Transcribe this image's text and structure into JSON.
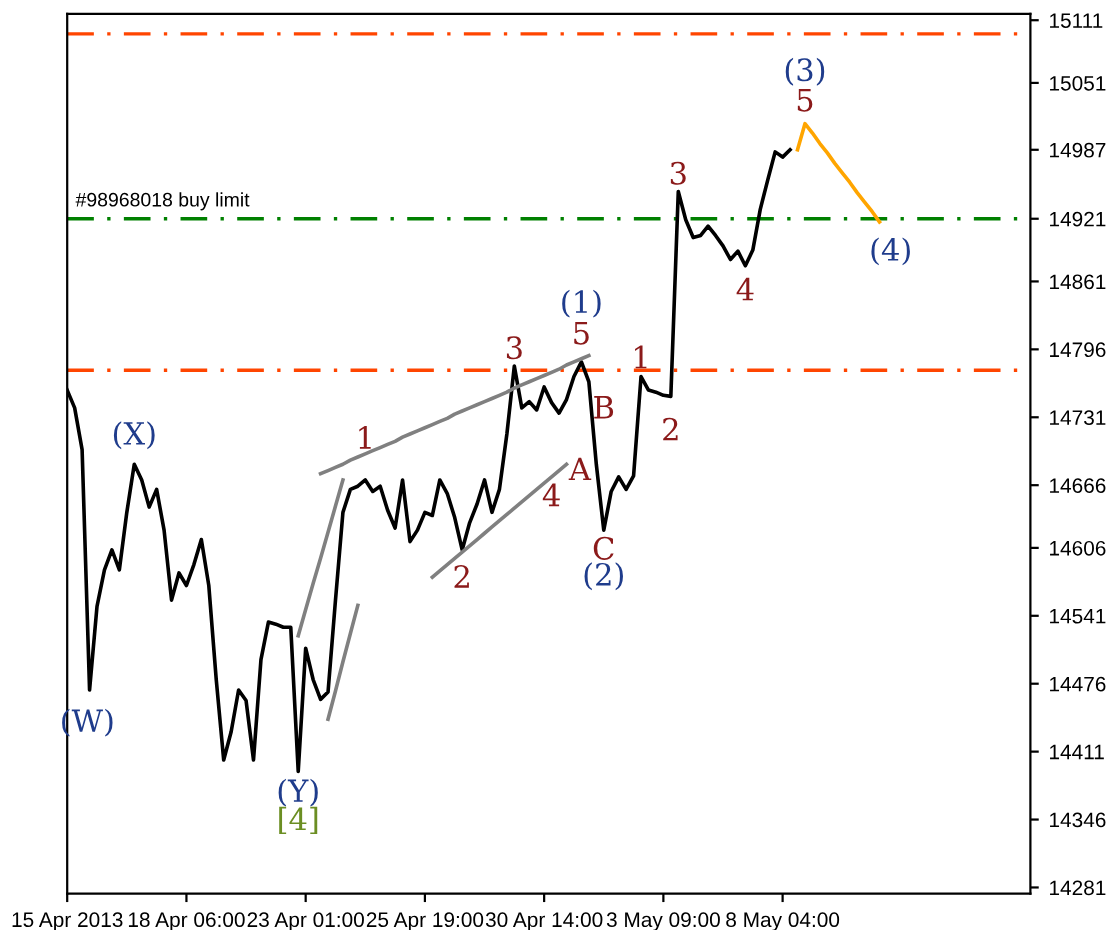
{
  "chart_data": {
    "type": "line",
    "categories": [
      "15 Apr 2013",
      null,
      null,
      null,
      null,
      null,
      null,
      null,
      null,
      null,
      null,
      null,
      null,
      null,
      null,
      null,
      "18 Apr 06:00",
      null,
      null,
      null,
      null,
      null,
      null,
      null,
      null,
      null,
      null,
      null,
      null,
      null,
      null,
      null,
      "23 Apr 01:00",
      null,
      null,
      null,
      null,
      null,
      null,
      null,
      null,
      null,
      null,
      null,
      null,
      null,
      null,
      null,
      "25 Apr 19:00",
      null,
      null,
      null,
      null,
      null,
      null,
      null,
      null,
      null,
      null,
      null,
      null,
      null,
      null,
      null,
      "30 Apr 14:00",
      null,
      null,
      null,
      null,
      null,
      null,
      null,
      null,
      null,
      null,
      null,
      null,
      null,
      null,
      null,
      "3 May 09:00",
      null,
      null,
      null,
      null,
      null,
      null,
      null,
      null,
      null,
      null,
      null,
      null,
      null,
      null,
      null,
      "8 May 04:00",
      null,
      null,
      null,
      null,
      null,
      null,
      null,
      null,
      null,
      null,
      null,
      null,
      null,
      null,
      null,
      null,
      null,
      null,
      null,
      null,
      null,
      null,
      null,
      null,
      null,
      null,
      null,
      null,
      null,
      null,
      null,
      null,
      null
    ],
    "ylim": [
      14275,
      15117
    ],
    "yticks": [
      15111,
      15051,
      14987,
      14921,
      14861,
      14796,
      14731,
      14666,
      14606,
      14541,
      14476,
      14411,
      14346,
      14281
    ],
    "series": [
      {
        "color": "#000000",
        "values": [
          14757,
          14740,
          14700,
          14470,
          14550,
          14585,
          14604,
          14585,
          14640,
          14686,
          14671,
          14645,
          14662,
          14623,
          14556,
          14582,
          14570,
          14590,
          14614,
          14570,
          14480,
          14403,
          14430,
          14470,
          14460,
          14403,
          14499,
          14535,
          14533,
          14530,
          14530,
          14392,
          14510,
          14480,
          14461,
          14468,
          14556,
          14640,
          14662,
          14665,
          14671,
          14660,
          14665,
          14642,
          14625,
          14671,
          14612,
          14623,
          14640,
          14637,
          14671,
          14658,
          14635,
          14604,
          14630,
          14648,
          14671,
          14640,
          14662,
          14715,
          14780,
          14740,
          14746,
          14738,
          14760,
          14745,
          14735,
          14748,
          14770,
          14784,
          14765,
          14686,
          14623,
          14660,
          14674,
          14662,
          14675,
          14770,
          14757,
          14755,
          14752,
          14751,
          14947,
          14920,
          14903,
          14905,
          14914,
          14905,
          14895,
          14882,
          14890,
          14876,
          14891,
          14930,
          14958,
          14985,
          14980,
          14987,
          null,
          null,
          null,
          null,
          null,
          null,
          null,
          null,
          null,
          null,
          null,
          null,
          null,
          null,
          null,
          null,
          null,
          null,
          null,
          null,
          null,
          null,
          null,
          null,
          null,
          null,
          null,
          null,
          null,
          null,
          null,
          null
        ]
      },
      {
        "color": "#808080",
        "values": [
          null,
          null,
          null,
          null,
          null,
          null,
          null,
          null,
          null,
          null,
          null,
          null,
          null,
          null,
          null,
          null,
          null,
          null,
          null,
          null,
          null,
          null,
          null,
          null,
          null,
          null,
          null,
          null,
          null,
          null,
          null,
          null,
          null,
          null,
          14677,
          14680,
          14683,
          14686,
          14690,
          14693,
          14696,
          14699,
          14702,
          14705,
          14708,
          14712,
          14715,
          14718,
          14721,
          14724,
          14727,
          14730,
          14734,
          14737,
          14740,
          14743,
          14746,
          14749,
          14752,
          14755,
          14759,
          14762,
          14765,
          14768,
          14771,
          14774,
          14777,
          14781,
          14784,
          14787,
          14790,
          null,
          null,
          null,
          null,
          null,
          null,
          null,
          null,
          null,
          null,
          null,
          null,
          null,
          null,
          null,
          null,
          null,
          null,
          null,
          null,
          null,
          null,
          null,
          null,
          null,
          null,
          null,
          null,
          null,
          null,
          null,
          null,
          null,
          null,
          null,
          null,
          null,
          null,
          null,
          null,
          null,
          null,
          null,
          null,
          null,
          null,
          null,
          null,
          null,
          null,
          null,
          null,
          null,
          null,
          null,
          null,
          null,
          null,
          null
        ]
      },
      {
        "color": "#808080",
        "values": [
          null,
          null,
          null,
          null,
          null,
          null,
          null,
          null,
          null,
          null,
          null,
          null,
          null,
          null,
          null,
          null,
          null,
          null,
          null,
          null,
          null,
          null,
          null,
          null,
          null,
          null,
          null,
          null,
          null,
          null,
          null,
          null,
          null,
          null,
          null,
          null,
          null,
          null,
          null,
          null,
          null,
          null,
          null,
          null,
          null,
          null,
          null,
          null,
          null,
          14578,
          14584,
          14590,
          14596,
          14602,
          14608,
          14614,
          14620,
          14626,
          14632,
          14638,
          14644,
          14650,
          14656,
          14662,
          14668,
          14674,
          14680,
          14686,
          null,
          null,
          null,
          null,
          null,
          null,
          null,
          null,
          null,
          null,
          null,
          null,
          null,
          null,
          null,
          null,
          null,
          null,
          null,
          null,
          null,
          null,
          null,
          null,
          null,
          null,
          null,
          null,
          null,
          null,
          null,
          null,
          null,
          null,
          null,
          null,
          null,
          null,
          null,
          null,
          null,
          null,
          null,
          null,
          null,
          null,
          null,
          null,
          null,
          null,
          null,
          null,
          null,
          null,
          null,
          null,
          null,
          null,
          null,
          null,
          null,
          null
        ]
      },
      {
        "color": "#808080",
        "values": [
          null,
          null,
          null,
          null,
          null,
          null,
          null,
          null,
          null,
          null,
          null,
          null,
          null,
          null,
          null,
          null,
          null,
          null,
          null,
          null,
          null,
          null,
          null,
          null,
          null,
          null,
          null,
          null,
          null,
          null,
          null,
          14522,
          14547,
          14572,
          14596,
          14621,
          14646,
          14671,
          null,
          null,
          null,
          null,
          null,
          null,
          null,
          null,
          null,
          null,
          null,
          null,
          null,
          null,
          null,
          null,
          null,
          null,
          null,
          null,
          null,
          null,
          null,
          null,
          null,
          null,
          null,
          null,
          null,
          null,
          null,
          null,
          null,
          null,
          null,
          null,
          null,
          null,
          null,
          null,
          null,
          null,
          null,
          null,
          null,
          null,
          null,
          null,
          null,
          null,
          null,
          null,
          null,
          null,
          null,
          null,
          null,
          null,
          null,
          null,
          null,
          null,
          null,
          null,
          null,
          null,
          null,
          null,
          null,
          null,
          null,
          null,
          null,
          null,
          null,
          null,
          null,
          null,
          null,
          null,
          null,
          null,
          null,
          null,
          null,
          null,
          null,
          null,
          null,
          null,
          null,
          null
        ]
      },
      {
        "color": "#808080",
        "values": [
          null,
          null,
          null,
          null,
          null,
          null,
          null,
          null,
          null,
          null,
          null,
          null,
          null,
          null,
          null,
          null,
          null,
          null,
          null,
          null,
          null,
          null,
          null,
          null,
          null,
          null,
          null,
          null,
          null,
          null,
          null,
          null,
          null,
          null,
          null,
          14442,
          14469,
          14497,
          14524,
          14551,
          null,
          null,
          null,
          null,
          null,
          null,
          null,
          null,
          null,
          null,
          null,
          null,
          null,
          null,
          null,
          null,
          null,
          null,
          null,
          null,
          null,
          null,
          null,
          null,
          null,
          null,
          null,
          null,
          null,
          null,
          null,
          null,
          null,
          null,
          null,
          null,
          null,
          null,
          null,
          null,
          null,
          null,
          null,
          null,
          null,
          null,
          null,
          null,
          null,
          null,
          null,
          null,
          null,
          null,
          null,
          null,
          null,
          null,
          null,
          null,
          null,
          null,
          null,
          null,
          null,
          null,
          null,
          null,
          null,
          null,
          null,
          null,
          null,
          null,
          null,
          null,
          null,
          null,
          null,
          null,
          null,
          null,
          null,
          null,
          null,
          null,
          null,
          null,
          null,
          null
        ]
      },
      {
        "color": "#ffa500",
        "values": [
          null,
          null,
          null,
          null,
          null,
          null,
          null,
          null,
          null,
          null,
          null,
          null,
          null,
          null,
          null,
          null,
          null,
          null,
          null,
          null,
          null,
          null,
          null,
          null,
          null,
          null,
          null,
          null,
          null,
          null,
          null,
          null,
          null,
          null,
          null,
          null,
          null,
          null,
          null,
          null,
          null,
          null,
          null,
          null,
          null,
          null,
          null,
          null,
          null,
          null,
          null,
          null,
          null,
          null,
          null,
          null,
          null,
          null,
          null,
          null,
          null,
          null,
          null,
          null,
          null,
          null,
          null,
          null,
          null,
          null,
          null,
          null,
          null,
          null,
          null,
          null,
          null,
          null,
          null,
          null,
          null,
          null,
          null,
          null,
          null,
          null,
          null,
          null,
          null,
          null,
          null,
          null,
          null,
          null,
          null,
          null,
          null,
          null,
          14987,
          15012,
          15003,
          14993,
          14984,
          14974,
          14965,
          14956,
          14946,
          14937,
          14928,
          14918,
          null,
          null,
          null,
          null,
          null,
          null,
          null,
          null,
          null,
          null,
          null,
          null,
          null,
          null,
          null,
          null,
          null,
          null,
          null,
          null
        ]
      }
    ],
    "ref_lines": [
      {
        "axis": "y",
        "value": 15098,
        "color": "#ff4500",
        "line_style": "dashdot"
      },
      {
        "axis": "y",
        "value": 14921,
        "color": "#008000",
        "line_style": "dashdot",
        "label": "#98968018 buy limit"
      },
      {
        "axis": "y",
        "value": 14776,
        "color": "#ff4500",
        "line_style": "dashdot"
      }
    ],
    "annotations": [
      "(W)",
      "(X)",
      "(Y)",
      "[4]",
      "1",
      "2",
      "3",
      "4",
      "5",
      "(1)",
      "A",
      "B",
      "C",
      "(2)",
      "1",
      "2",
      "3",
      "4",
      "5",
      "(3)",
      "(4)"
    ]
  }
}
